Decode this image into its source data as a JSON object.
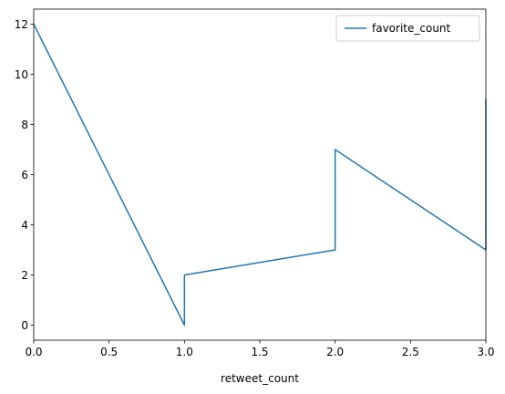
{
  "chart_data": {
    "type": "line",
    "title": "",
    "xlabel": "retweet_count",
    "ylabel": "",
    "xlim": [
      0,
      3
    ],
    "ylim": [
      -0.6,
      12.6
    ],
    "xticks": [
      0.0,
      0.5,
      1.0,
      1.5,
      2.0,
      2.5,
      3.0
    ],
    "xtick_labels": [
      "0.0",
      "0.5",
      "1.0",
      "1.5",
      "2.0",
      "2.5",
      "3.0"
    ],
    "yticks": [
      0,
      2,
      4,
      6,
      8,
      10,
      12
    ],
    "ytick_labels": [
      "0",
      "2",
      "4",
      "6",
      "8",
      "10",
      "12"
    ],
    "grid": false,
    "legend_position": "top-right",
    "series": [
      {
        "name": "favorite_count",
        "color": "#1f77b4",
        "x": [
          0,
          1,
          1,
          2,
          2,
          3,
          3,
          3
        ],
        "y": [
          12,
          0,
          2,
          3,
          7,
          3,
          9,
          9
        ]
      }
    ]
  }
}
